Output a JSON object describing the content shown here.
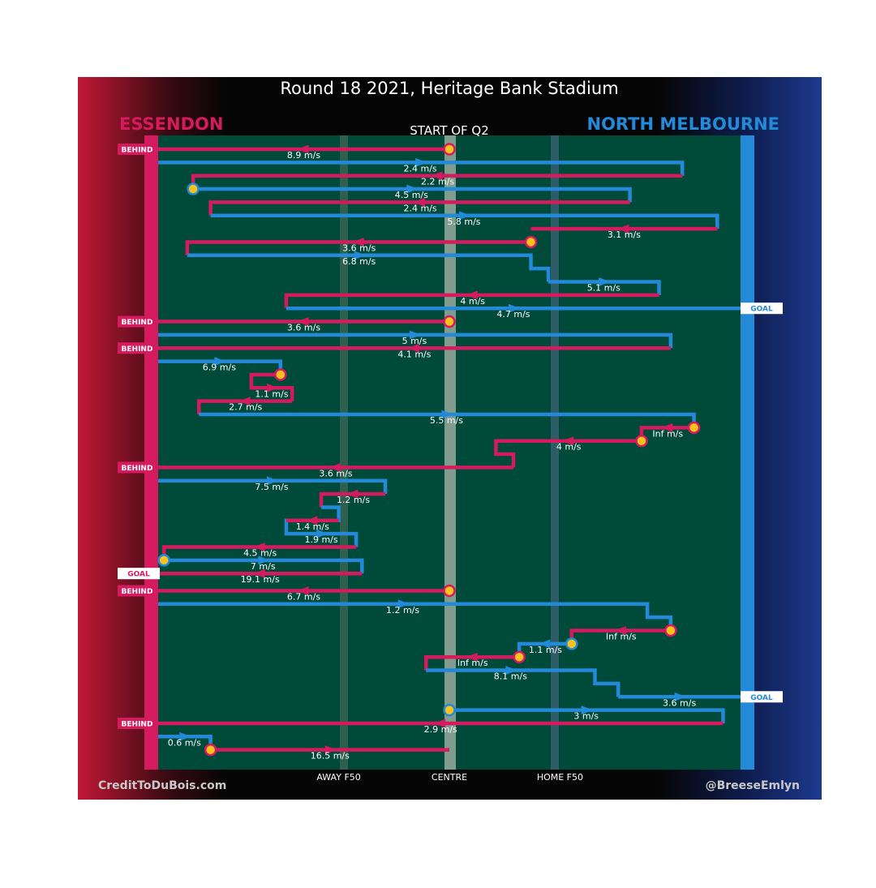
{
  "chart_data": {
    "type": "chain-flow",
    "title": "Round 18 2021, Heritage Bank Stadium",
    "subtitle": "START OF Q2",
    "teams": {
      "left": {
        "name": "ESSENDON",
        "color": "#d61a5e"
      },
      "right": {
        "name": "NORTH MELBOURNE",
        "color": "#2389d9"
      }
    },
    "x_axis": {
      "range": [
        0,
        100
      ],
      "left_goal": "ESSENDON goal line (x=0)",
      "right_goal": "NORTH MELBOURNE goal line (x=100)",
      "ticks": [
        {
          "label": "AWAY F50",
          "x": 31
        },
        {
          "label": "CENTRE",
          "x": 50
        },
        {
          "label": "HOME F50",
          "x": 69
        }
      ]
    },
    "credits": {
      "left": "CreditToDuBois.com",
      "right": "@BreeseEmlyn"
    },
    "events": {
      "goal": "GOAL",
      "behind": "BEHIND"
    },
    "chains": [
      {
        "team": "essendon",
        "speed": "8.9 m/s",
        "points": [
          [
            50,
            0
          ],
          [
            0,
            0
          ]
        ],
        "start_marker": true,
        "end": "behind-left"
      },
      {
        "team": "north",
        "speed": "2.4 m/s",
        "points": [
          [
            0,
            1
          ],
          [
            90,
            1
          ],
          [
            90,
            2
          ]
        ]
      },
      {
        "team": "essendon",
        "speed": "2.2 m/s",
        "points": [
          [
            90,
            2
          ],
          [
            6,
            2
          ],
          [
            6,
            3
          ]
        ]
      },
      {
        "team": "north",
        "speed": "4.5 m/s",
        "points": [
          [
            6,
            3
          ],
          [
            81,
            3
          ],
          [
            81,
            4
          ]
        ],
        "start_marker": true
      },
      {
        "team": "essendon",
        "speed": "2.4 m/s",
        "points": [
          [
            81,
            4
          ],
          [
            9,
            4
          ],
          [
            9,
            5
          ]
        ]
      },
      {
        "team": "north",
        "speed": "5.8 m/s",
        "points": [
          [
            9,
            5
          ],
          [
            96,
            5
          ],
          [
            96,
            6
          ]
        ]
      },
      {
        "team": "essendon",
        "speed": "3.1 m/s",
        "points": [
          [
            96,
            6
          ],
          [
            64,
            6
          ]
        ]
      },
      {
        "team": "essendon",
        "speed": "3.6 m/s",
        "points": [
          [
            64,
            7
          ],
          [
            5,
            7
          ],
          [
            5,
            8
          ]
        ],
        "start_marker": true
      },
      {
        "team": "north",
        "speed": "6.8 m/s",
        "points": [
          [
            5,
            8
          ],
          [
            64,
            8
          ],
          [
            64,
            9
          ],
          [
            67,
            9
          ],
          [
            67,
            10
          ]
        ]
      },
      {
        "team": "north",
        "speed": "5.1 m/s",
        "points": [
          [
            67,
            10
          ],
          [
            86,
            10
          ],
          [
            86,
            11
          ]
        ]
      },
      {
        "team": "essendon",
        "speed": "4 m/s",
        "points": [
          [
            86,
            11
          ],
          [
            22,
            11
          ],
          [
            22,
            12
          ]
        ]
      },
      {
        "team": "north",
        "speed": "4.7 m/s",
        "points": [
          [
            22,
            12
          ],
          [
            100,
            12
          ]
        ],
        "end": "goal-right"
      },
      {
        "team": "essendon",
        "speed": "3.6 m/s",
        "points": [
          [
            50,
            13
          ],
          [
            0,
            13
          ]
        ],
        "start_marker": true,
        "end": "behind-left"
      },
      {
        "team": "north",
        "speed": "5 m/s",
        "points": [
          [
            0,
            14
          ],
          [
            88,
            14
          ],
          [
            88,
            15
          ]
        ]
      },
      {
        "team": "essendon",
        "speed": "4.1 m/s",
        "points": [
          [
            88,
            15
          ],
          [
            0,
            15
          ]
        ],
        "end": "behind-left"
      },
      {
        "team": "north",
        "speed": "6.9 m/s",
        "points": [
          [
            0,
            16
          ],
          [
            21,
            16
          ],
          [
            21,
            17
          ]
        ]
      },
      {
        "team": "essendon",
        "speed": "1.1 m/s",
        "points": [
          [
            21,
            17
          ],
          [
            16,
            17
          ],
          [
            16,
            18
          ],
          [
            23,
            18
          ],
          [
            23,
            19
          ]
        ],
        "start_marker": true
      },
      {
        "team": "essendon",
        "speed": "2.7 m/s",
        "points": [
          [
            23,
            19
          ],
          [
            7,
            19
          ],
          [
            7,
            20
          ]
        ]
      },
      {
        "team": "north",
        "speed": "5.5 m/s",
        "points": [
          [
            7,
            20
          ],
          [
            92,
            20
          ],
          [
            92,
            21
          ]
        ]
      },
      {
        "team": "essendon",
        "speed": "Inf m/s",
        "points": [
          [
            92,
            21
          ],
          [
            83,
            21
          ],
          [
            83,
            22
          ]
        ],
        "start_marker": true
      },
      {
        "team": "essendon",
        "speed": "4 m/s",
        "points": [
          [
            83,
            22
          ],
          [
            58,
            22
          ],
          [
            58,
            23
          ],
          [
            61,
            23
          ],
          [
            61,
            24
          ]
        ],
        "start_marker": true
      },
      {
        "team": "essendon",
        "speed": "3.6 m/s",
        "points": [
          [
            61,
            24
          ],
          [
            0,
            24
          ]
        ],
        "end": "behind-left"
      },
      {
        "team": "north",
        "speed": "7.5 m/s",
        "points": [
          [
            0,
            25
          ],
          [
            39,
            25
          ],
          [
            39,
            26
          ]
        ]
      },
      {
        "team": "essendon",
        "speed": "1.2 m/s",
        "points": [
          [
            39,
            26
          ],
          [
            28,
            26
          ],
          [
            28,
            27
          ]
        ]
      },
      {
        "team": "north",
        "speed": "1.9 m/s",
        "points": [
          [
            28,
            27
          ],
          [
            31,
            27
          ],
          [
            31,
            28
          ],
          [
            22,
            28
          ],
          [
            22,
            29
          ],
          [
            34,
            29
          ],
          [
            34,
            30
          ]
        ]
      },
      {
        "team": "essendon",
        "speed": "1.4 m/s",
        "points": [
          [
            31,
            28
          ],
          [
            22,
            28
          ]
        ]
      },
      {
        "team": "essendon",
        "speed": "4.5 m/s",
        "points": [
          [
            34,
            30
          ],
          [
            1,
            30
          ],
          [
            1,
            31
          ]
        ]
      },
      {
        "team": "north",
        "speed": "7 m/s",
        "points": [
          [
            1,
            31
          ],
          [
            35,
            31
          ],
          [
            35,
            32
          ]
        ],
        "start_marker": true
      },
      {
        "team": "essendon",
        "speed": "19.1 m/s",
        "points": [
          [
            35,
            32
          ],
          [
            0,
            32
          ]
        ],
        "end": "goal-left"
      },
      {
        "team": "essendon",
        "speed": "6.7 m/s",
        "points": [
          [
            50,
            33.3
          ],
          [
            0,
            33.3
          ]
        ],
        "start_marker": true,
        "end": "behind-left"
      },
      {
        "team": "north",
        "speed": "1.2 m/s",
        "points": [
          [
            0,
            34.3
          ],
          [
            84,
            34.3
          ],
          [
            84,
            35.3
          ],
          [
            88,
            35.3
          ],
          [
            88,
            36.3
          ]
        ]
      },
      {
        "team": "essendon",
        "speed": "Inf m/s",
        "points": [
          [
            88,
            36.3
          ],
          [
            71,
            36.3
          ],
          [
            71,
            37.3
          ]
        ],
        "start_marker": true
      },
      {
        "team": "north",
        "speed": "1.1 m/s",
        "points": [
          [
            71,
            37.3
          ],
          [
            62,
            37.3
          ],
          [
            62,
            38.3
          ]
        ],
        "start_marker": true
      },
      {
        "team": "essendon",
        "speed": "Inf m/s",
        "points": [
          [
            62,
            38.3
          ],
          [
            46,
            38.3
          ],
          [
            46,
            39.3
          ]
        ],
        "start_marker": true
      },
      {
        "team": "north",
        "speed": "8.1 m/s",
        "points": [
          [
            46,
            39.3
          ],
          [
            75,
            39.3
          ],
          [
            75,
            40.3
          ],
          [
            79,
            40.3
          ],
          [
            79,
            41.3
          ]
        ]
      },
      {
        "team": "north",
        "speed": "3.6 m/s",
        "points": [
          [
            79,
            41.3
          ],
          [
            100,
            41.3
          ]
        ],
        "end": "goal-right"
      },
      {
        "team": "north",
        "speed": "3 m/s",
        "points": [
          [
            50,
            42.3
          ],
          [
            97,
            42.3
          ],
          [
            97,
            43.3
          ]
        ],
        "start_marker": true
      },
      {
        "team": "essendon",
        "speed": "2.9 m/s",
        "points": [
          [
            97,
            43.3
          ],
          [
            0,
            43.3
          ]
        ],
        "end": "behind-left"
      },
      {
        "team": "north",
        "speed": "0.6 m/s",
        "points": [
          [
            0,
            44.3
          ],
          [
            9,
            44.3
          ],
          [
            9,
            45.3
          ]
        ]
      },
      {
        "team": "essendon",
        "speed": "16.5 m/s",
        "points": [
          [
            9,
            45.3
          ],
          [
            50,
            45.3
          ]
        ],
        "start_marker": true
      }
    ]
  }
}
